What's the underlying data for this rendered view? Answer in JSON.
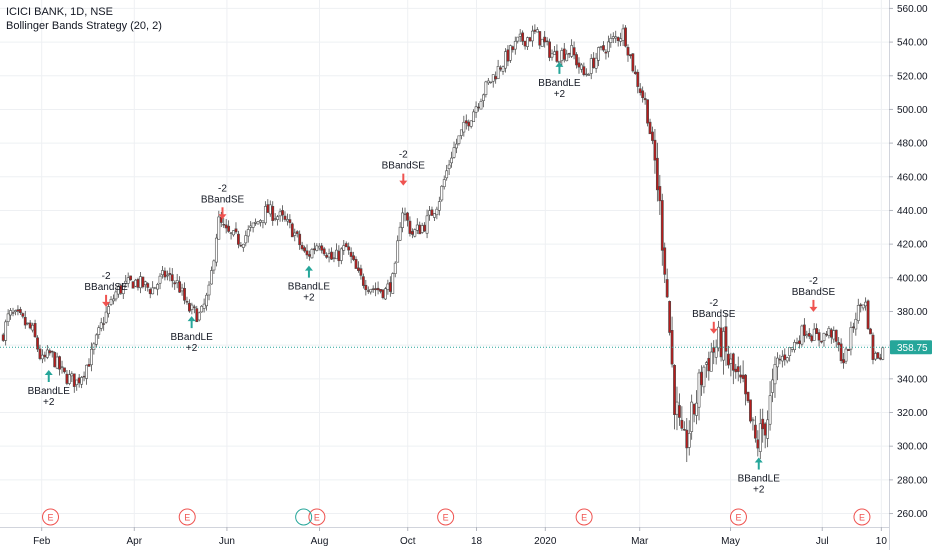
{
  "legend": {
    "symbol_line": "ICICI BANK, 1D, NSE",
    "strategy_line": "Bollinger Bands Strategy (20, 2)"
  },
  "last_price_label": "358.75",
  "colors": {
    "up": "#26a69a",
    "down": "#ef5350",
    "candle_up": "#ffffff",
    "candle_down": "#b71c1c",
    "wick": "#4a4a4a",
    "last_line": "#26a69a",
    "grid": "#eef0f3",
    "axis_text": "#131722",
    "earnings": "#ef5350"
  },
  "chart_data": {
    "type": "candlestick",
    "title": "ICICI BANK, 1D, NSE",
    "subtitle": "Bollinger Bands Strategy (20, 2)",
    "y_axis": {
      "ticks": [
        260,
        280,
        300,
        320,
        340,
        360,
        380,
        400,
        420,
        440,
        460,
        480,
        500,
        520,
        540,
        560
      ],
      "range": [
        252,
        565
      ],
      "side": "right"
    },
    "x_axis": {
      "ticks": [
        {
          "label": "Feb",
          "t": 0.045
        },
        {
          "label": "Apr",
          "t": 0.15
        },
        {
          "label": "Jun",
          "t": 0.255
        },
        {
          "label": "Aug",
          "t": 0.36
        },
        {
          "label": "Oct",
          "t": 0.46
        },
        {
          "label": "18",
          "t": 0.538
        },
        {
          "label": "2020",
          "t": 0.616
        },
        {
          "label": "Mar",
          "t": 0.723
        },
        {
          "label": "May",
          "t": 0.826
        },
        {
          "label": "Jul",
          "t": 0.93
        },
        {
          "label": "10",
          "t": 0.997
        }
      ]
    },
    "last_price": 358.75,
    "price_path": [
      {
        "t": 0.0,
        "p": 365
      },
      {
        "t": 0.008,
        "p": 378
      },
      {
        "t": 0.02,
        "p": 376
      },
      {
        "t": 0.035,
        "p": 368
      },
      {
        "t": 0.045,
        "p": 350
      },
      {
        "t": 0.055,
        "p": 355
      },
      {
        "t": 0.07,
        "p": 342
      },
      {
        "t": 0.085,
        "p": 338
      },
      {
        "t": 0.1,
        "p": 352
      },
      {
        "t": 0.115,
        "p": 375
      },
      {
        "t": 0.13,
        "p": 392
      },
      {
        "t": 0.15,
        "p": 398
      },
      {
        "t": 0.17,
        "p": 393
      },
      {
        "t": 0.185,
        "p": 402
      },
      {
        "t": 0.2,
        "p": 396
      },
      {
        "t": 0.21,
        "p": 382
      },
      {
        "t": 0.225,
        "p": 377
      },
      {
        "t": 0.235,
        "p": 392
      },
      {
        "t": 0.245,
        "p": 434
      },
      {
        "t": 0.255,
        "p": 426
      },
      {
        "t": 0.27,
        "p": 422
      },
      {
        "t": 0.285,
        "p": 430
      },
      {
        "t": 0.3,
        "p": 440
      },
      {
        "t": 0.315,
        "p": 436
      },
      {
        "t": 0.33,
        "p": 428
      },
      {
        "t": 0.345,
        "p": 412
      },
      {
        "t": 0.36,
        "p": 422
      },
      {
        "t": 0.375,
        "p": 410
      },
      {
        "t": 0.39,
        "p": 418
      },
      {
        "t": 0.405,
        "p": 400
      },
      {
        "t": 0.42,
        "p": 394
      },
      {
        "t": 0.435,
        "p": 392
      },
      {
        "t": 0.445,
        "p": 400
      },
      {
        "t": 0.453,
        "p": 442
      },
      {
        "t": 0.465,
        "p": 426
      },
      {
        "t": 0.48,
        "p": 432
      },
      {
        "t": 0.495,
        "p": 446
      },
      {
        "t": 0.51,
        "p": 474
      },
      {
        "t": 0.525,
        "p": 490
      },
      {
        "t": 0.545,
        "p": 510
      },
      {
        "t": 0.565,
        "p": 526
      },
      {
        "t": 0.585,
        "p": 540
      },
      {
        "t": 0.605,
        "p": 545
      },
      {
        "t": 0.625,
        "p": 532
      },
      {
        "t": 0.645,
        "p": 535
      },
      {
        "t": 0.66,
        "p": 520
      },
      {
        "t": 0.675,
        "p": 532
      },
      {
        "t": 0.69,
        "p": 540
      },
      {
        "t": 0.705,
        "p": 546
      },
      {
        "t": 0.718,
        "p": 520
      },
      {
        "t": 0.73,
        "p": 503
      },
      {
        "t": 0.742,
        "p": 462
      },
      {
        "t": 0.752,
        "p": 406
      },
      {
        "t": 0.762,
        "p": 330
      },
      {
        "t": 0.772,
        "p": 296
      },
      {
        "t": 0.782,
        "p": 316
      },
      {
        "t": 0.795,
        "p": 346
      },
      {
        "t": 0.805,
        "p": 356
      },
      {
        "t": 0.815,
        "p": 362
      },
      {
        "t": 0.825,
        "p": 348
      },
      {
        "t": 0.84,
        "p": 332
      },
      {
        "t": 0.855,
        "p": 300
      },
      {
        "t": 0.868,
        "p": 318
      },
      {
        "t": 0.88,
        "p": 350
      },
      {
        "t": 0.895,
        "p": 358
      },
      {
        "t": 0.91,
        "p": 370
      },
      {
        "t": 0.925,
        "p": 364
      },
      {
        "t": 0.94,
        "p": 368
      },
      {
        "t": 0.955,
        "p": 350
      },
      {
        "t": 0.968,
        "p": 378
      },
      {
        "t": 0.978,
        "p": 388
      },
      {
        "t": 0.988,
        "p": 352
      },
      {
        "t": 1.0,
        "p": 358
      }
    ],
    "signals": [
      {
        "type": "long",
        "name": "BBandLE",
        "qty": "+2",
        "t": 0.053,
        "p": 350
      },
      {
        "type": "short",
        "name": "BBandSE",
        "qty": "-2",
        "t": 0.118,
        "p": 378
      },
      {
        "type": "long",
        "name": "BBandLE",
        "qty": "+2",
        "t": 0.215,
        "p": 382
      },
      {
        "type": "short",
        "name": "BBandSE",
        "qty": "-2",
        "t": 0.25,
        "p": 430
      },
      {
        "type": "long",
        "name": "BBandLE",
        "qty": "+2",
        "t": 0.348,
        "p": 412
      },
      {
        "type": "short",
        "name": "BBandSE",
        "qty": "-2",
        "t": 0.455,
        "p": 450
      },
      {
        "type": "long",
        "name": "BBandLE",
        "qty": "+2",
        "t": 0.632,
        "p": 533
      },
      {
        "type": "short",
        "name": "BBandSE",
        "qty": "-2",
        "t": 0.807,
        "p": 362
      },
      {
        "type": "long",
        "name": "BBandLE",
        "qty": "+2",
        "t": 0.858,
        "p": 298
      },
      {
        "type": "short",
        "name": "BBandSE",
        "qty": "-2",
        "t": 0.92,
        "p": 375
      }
    ],
    "earnings": [
      {
        "label": "E",
        "t": 0.055
      },
      {
        "label": "E",
        "t": 0.21
      },
      {
        "label": "E",
        "t": 0.357
      },
      {
        "label": "E",
        "t": 0.503
      },
      {
        "label": "E",
        "t": 0.66
      },
      {
        "label": "E",
        "t": 0.835
      },
      {
        "label": "E",
        "t": 0.975
      }
    ],
    "extra_marker": {
      "t": 0.342
    }
  }
}
